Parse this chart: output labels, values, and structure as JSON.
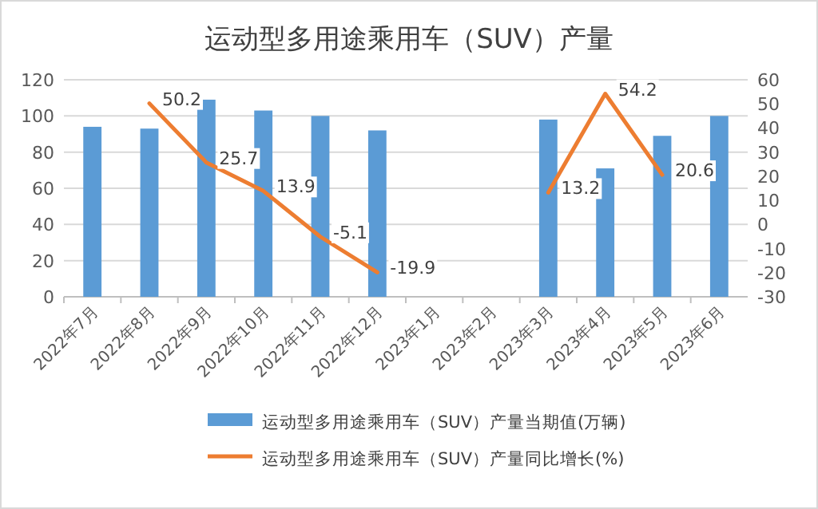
{
  "chart_data": {
    "type": "bar",
    "title": "运动型多用途乘用车（SUV）产量",
    "categories": [
      "2022年7月",
      "2022年8月",
      "2022年9月",
      "2022年10月",
      "2022年11月",
      "2022年12月",
      "2023年1月",
      "2023年2月",
      "2023年3月",
      "2023年4月",
      "2023年5月",
      "2023年6月"
    ],
    "series": [
      {
        "name": "运动型多用途乘用车（SUV）产量当期值(万辆)",
        "color": "#5b9bd5",
        "values": [
          94,
          93,
          109,
          103,
          100,
          92,
          null,
          null,
          98,
          71,
          89,
          100
        ]
      },
      {
        "name": "运动型多用途乘用车（SUV）产量同比增长(%)",
        "type": "line",
        "axis": "y2",
        "color": "#ed7d31",
        "values": [
          null,
          50.2,
          25.7,
          13.9,
          -5.1,
          -19.9,
          null,
          null,
          13.2,
          54.2,
          20.6,
          null
        ],
        "value_labels": [
          null,
          "50.2",
          "25.7",
          "13.9",
          "-5.1",
          "-19.9",
          null,
          null,
          "13.2",
          "54.2",
          "20.6",
          null
        ]
      }
    ],
    "ylim": [
      0,
      120
    ],
    "yticks": [
      0,
      20,
      40,
      60,
      80,
      100,
      120
    ],
    "y2lim": [
      -30,
      60
    ],
    "y2ticks": [
      -30,
      -20,
      -10,
      0,
      10,
      20,
      30,
      40,
      50,
      60
    ],
    "grid": "y",
    "legend": "bottom",
    "marker": "none",
    "line_style": "solid"
  }
}
